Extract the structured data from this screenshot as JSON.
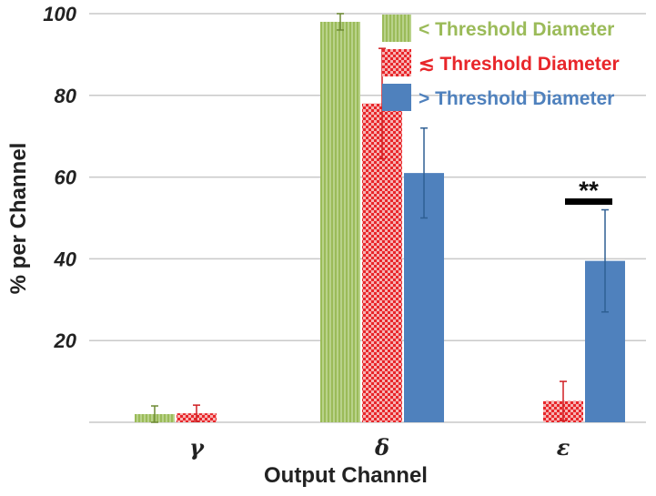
{
  "chart_data": {
    "type": "bar",
    "xlabel": "Output Channel",
    "ylabel": "% per Channel",
    "ylim": [
      0,
      100
    ],
    "yticks": [
      20,
      40,
      60,
      80,
      100
    ],
    "grid": true,
    "legend_position": "top-right",
    "categories": [
      "γ",
      "δ",
      "ε"
    ],
    "series": [
      {
        "name": "< Threshold Diameter",
        "color": "#9bbb59",
        "pattern": "vertical-lines",
        "values": [
          2,
          98,
          null
        ],
        "errors": [
          2,
          2,
          null
        ]
      },
      {
        "name": "≲ Threshold Diameter",
        "color": "#e8262a",
        "pattern": "checker",
        "values": [
          2.2,
          78,
          5.2
        ],
        "errors": [
          2,
          13.5,
          4.8
        ]
      },
      {
        "name": "> Threshold Diameter",
        "color": "#4f81bd",
        "pattern": "solid",
        "values": [
          null,
          61,
          39.5
        ],
        "errors": [
          null,
          11,
          12.5
        ]
      }
    ],
    "annotations": [
      {
        "text": "**",
        "category_index": 2,
        "from_series": 1,
        "to_series": 2,
        "y": 54
      }
    ]
  }
}
